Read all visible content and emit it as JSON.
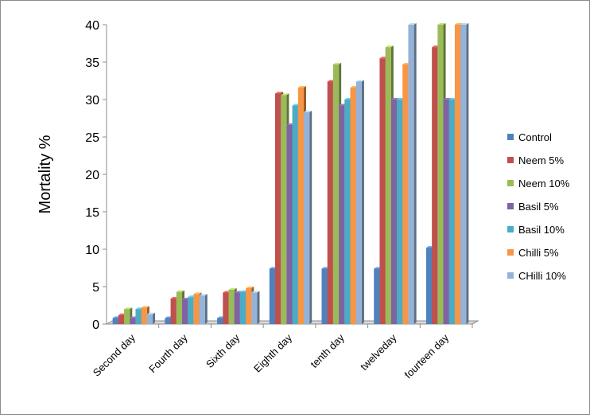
{
  "chart_data": {
    "type": "bar",
    "title": "",
    "xlabel": "",
    "ylabel": "Mortality %",
    "ylim": [
      0,
      40
    ],
    "yticks": [
      0,
      5,
      10,
      15,
      20,
      25,
      30,
      35,
      40
    ],
    "grid": false,
    "legend_position": "right",
    "categories": [
      "Second day",
      "Fourth day",
      "Sixth day",
      "Eighth day",
      "tenth day",
      "twelveday",
      "fourteen day"
    ],
    "series": [
      {
        "name": "Control",
        "color": "#4f81bd",
        "values": [
          0.8,
          0.8,
          0.8,
          7.4,
          7.4,
          7.4,
          10.2
        ]
      },
      {
        "name": "Neem 5%",
        "color": "#c0504d",
        "values": [
          1.2,
          3.4,
          4.2,
          30.8,
          32.4,
          35.5,
          37.0
        ]
      },
      {
        "name": "Neem 10%",
        "color": "#9bbb59",
        "values": [
          2.0,
          4.3,
          4.6,
          30.6,
          34.7,
          37.0,
          40.0
        ]
      },
      {
        "name": "Basil 5%",
        "color": "#8064a2",
        "values": [
          0.8,
          3.3,
          4.2,
          26.6,
          29.2,
          30.0,
          30.0
        ]
      },
      {
        "name": "Basil 10%",
        "color": "#4bacc6",
        "values": [
          2.0,
          3.6,
          4.3,
          29.2,
          30.0,
          30.0,
          30.0
        ]
      },
      {
        "name": "Chilli 5%",
        "color": "#f79646",
        "values": [
          2.2,
          4.0,
          4.8,
          31.6,
          31.6,
          34.7,
          40.0
        ]
      },
      {
        "name": "CHilli 10%",
        "color": "#95b3d7",
        "values": [
          1.3,
          3.8,
          4.2,
          28.3,
          32.4,
          40.0,
          40.0
        ]
      }
    ]
  }
}
